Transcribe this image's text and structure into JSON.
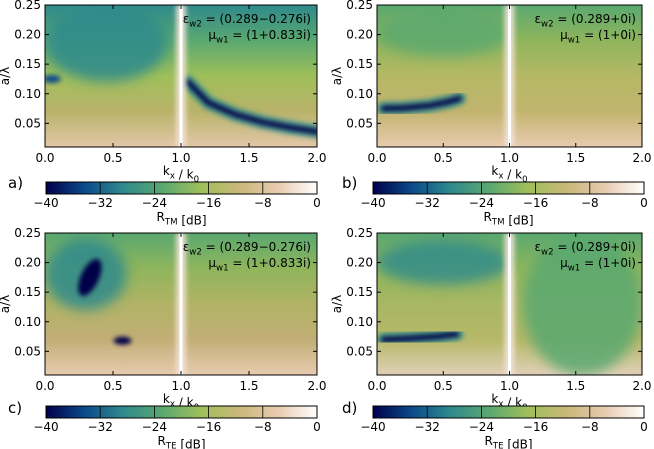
{
  "colors": {
    "colormap": [
      "#00004a",
      "#0b4a8a",
      "#2f8a8c",
      "#5aa870",
      "#9fbf5a",
      "#c9b87a",
      "#e8cbb0",
      "#ffffff"
    ],
    "axis": "#000000",
    "background": "#ffffff"
  },
  "chart_data": [
    {
      "type": "heatmap",
      "panel_label": "a)",
      "xlabel": "k_x / k_0",
      "ylabel": "a/λ",
      "xlim": [
        0,
        2
      ],
      "ylim": [
        0.01,
        0.25
      ],
      "x_ticks": [
        "0.0",
        "0.5",
        "1.0",
        "1.5",
        "2.0"
      ],
      "y_ticks": [
        "0.05",
        "0.10",
        "0.15",
        "0.20",
        "0.25"
      ],
      "annotation": [
        "εw2 = (0.289−0.276i)",
        "μw1 = (1+0.833i)"
      ],
      "colorbar": {
        "label": "R_TM [dB]",
        "ticks": [
          "−40",
          "−32",
          "−24",
          "−16",
          "−8",
          "0"
        ],
        "range": [
          -40,
          0
        ]
      },
      "features": [
        {
          "kind": "blue region",
          "x_range": [
            0.0,
            0.9
          ],
          "y_range": [
            0.12,
            0.25
          ],
          "min_db": -30
        },
        {
          "kind": "dark blue spot",
          "x": 0.05,
          "y": 0.125,
          "min_db": -36
        },
        {
          "kind": "minimum curve",
          "x": [
            1.05,
            1.2,
            1.4,
            1.6,
            1.8,
            2.0
          ],
          "y": [
            0.12,
            0.085,
            0.065,
            0.052,
            0.043,
            0.036
          ],
          "min_db": -40
        },
        {
          "kind": "white line",
          "x": 1.0,
          "max_db": 0
        }
      ]
    },
    {
      "type": "heatmap",
      "panel_label": "b)",
      "xlabel": "k_x / k_0",
      "ylabel": "a/λ",
      "xlim": [
        0,
        2
      ],
      "ylim": [
        0.01,
        0.25
      ],
      "x_ticks": [
        "0.0",
        "0.5",
        "1.0",
        "1.5",
        "2.0"
      ],
      "y_ticks": [
        "0.05",
        "0.10",
        "0.15",
        "0.20",
        "0.25"
      ],
      "annotation": [
        "εw2 = (0.289+0i)",
        "μw1 = (1+0i)"
      ],
      "colorbar": {
        "label": "R_TM [dB]",
        "ticks": [
          "−40",
          "−32",
          "−24",
          "−16",
          "−8",
          "0"
        ],
        "range": [
          -40,
          0
        ]
      },
      "features": [
        {
          "kind": "green band",
          "x_range": [
            0.0,
            1.0
          ],
          "y_center": 0.2,
          "min_db": -22
        },
        {
          "kind": "minimum curve",
          "x": [
            0.05,
            0.2,
            0.4,
            0.55,
            0.62
          ],
          "y": [
            0.075,
            0.076,
            0.08,
            0.087,
            0.092
          ],
          "min_db": -40
        },
        {
          "kind": "white line",
          "x": 1.0,
          "max_db": 0
        }
      ]
    },
    {
      "type": "heatmap",
      "panel_label": "c)",
      "xlabel": "k_x / k_0",
      "ylabel": "a/λ",
      "xlim": [
        0,
        2
      ],
      "ylim": [
        0.01,
        0.25
      ],
      "x_ticks": [
        "0.0",
        "0.5",
        "1.0",
        "1.5",
        "2.0"
      ],
      "y_ticks": [
        "0.05",
        "0.10",
        "0.15",
        "0.20",
        "0.25"
      ],
      "annotation": [
        "εw2 = (0.289−0.276i)",
        "μw1 = (1+0.833i)"
      ],
      "colorbar": {
        "label": "R_TE [dB]",
        "ticks": [
          "−40",
          "−32",
          "−24",
          "−16",
          "−8",
          "0"
        ],
        "range": [
          -40,
          0
        ]
      },
      "features": [
        {
          "kind": "blue region",
          "x_range": [
            0.0,
            0.6
          ],
          "y_range": [
            0.12,
            0.24
          ],
          "min_db": -28
        },
        {
          "kind": "dark minimum",
          "x": 0.33,
          "y": 0.175,
          "min_db": -40
        },
        {
          "kind": "dark spot",
          "x": 0.57,
          "y": 0.068,
          "min_db": -38
        },
        {
          "kind": "white line",
          "x": 1.0,
          "max_db": 0
        }
      ]
    },
    {
      "type": "heatmap",
      "panel_label": "d)",
      "xlabel": "k_x / k_0",
      "ylabel": "a/λ",
      "xlim": [
        0,
        2
      ],
      "ylim": [
        0.01,
        0.25
      ],
      "x_ticks": [
        "0.0",
        "0.5",
        "1.0",
        "1.5",
        "2.0"
      ],
      "y_ticks": [
        "0.05",
        "0.10",
        "0.15",
        "0.20",
        "0.25"
      ],
      "annotation": [
        "εw2 = (0.289+0i)",
        "μw1 = (1+0i)"
      ],
      "colorbar": {
        "label": "R_TE [dB]",
        "ticks": [
          "−40",
          "−32",
          "−24",
          "−16",
          "−8",
          "0"
        ],
        "range": [
          -40,
          0
        ]
      },
      "features": [
        {
          "kind": "green band",
          "x_range": [
            0.0,
            1.0
          ],
          "y_center": 0.2,
          "min_db": -26
        },
        {
          "kind": "minimum curve",
          "x": [
            0.05,
            0.25,
            0.45,
            0.6
          ],
          "y": [
            0.07,
            0.072,
            0.075,
            0.079
          ],
          "min_db": -40
        },
        {
          "kind": "green region",
          "x_range": [
            1.1,
            2.0
          ],
          "y_range": [
            0.01,
            0.25
          ],
          "min_db": -24
        },
        {
          "kind": "white line",
          "x": 1.0,
          "max_db": 0
        }
      ]
    }
  ]
}
